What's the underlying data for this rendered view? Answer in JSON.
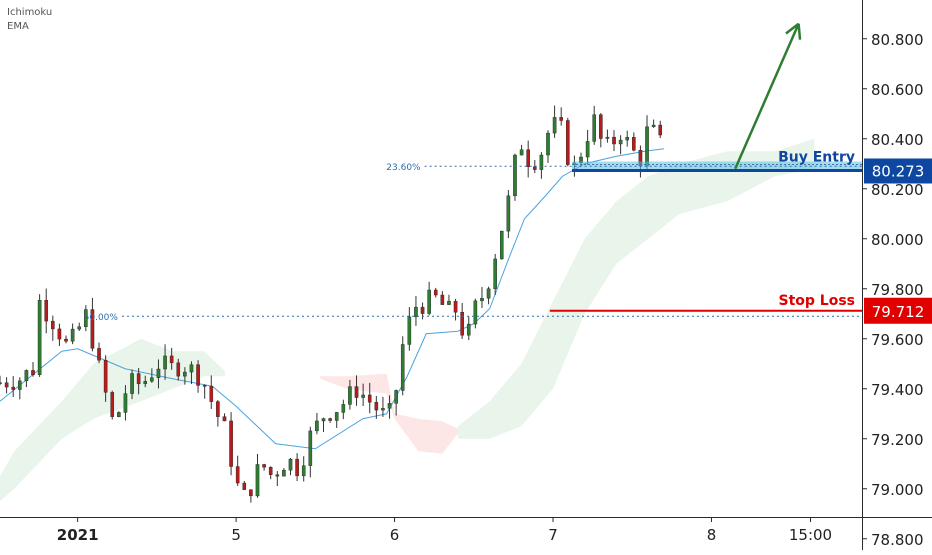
{
  "legend": {
    "ichimoku_label": "Ichimoku",
    "ema_label": "EMA"
  },
  "chart_data": {
    "type": "candlestick",
    "symbol_pair_indicators": [
      "Ichimoku",
      "EMA"
    ],
    "y_axis": {
      "ticks": [
        "80.800",
        "80.600",
        "80.400",
        "80.200",
        "80.000",
        "79.800",
        "79.600",
        "79.400",
        "79.200",
        "79.000",
        "78.800"
      ],
      "tick_values": [
        80.8,
        80.6,
        80.4,
        80.2,
        80.0,
        79.8,
        79.6,
        79.4,
        79.2,
        79.0,
        78.8
      ],
      "range": [
        78.755,
        80.955
      ]
    },
    "x_axis": {
      "ticks": [
        "2021",
        "5",
        "6",
        "7",
        "8",
        "15:00"
      ],
      "tick_positions_days": [
        0,
        1,
        2,
        3,
        4,
        4.625
      ],
      "range_days": [
        -0.49,
        4.95
      ]
    },
    "levels": {
      "buy_entry": {
        "label": "Buy Entry",
        "value": 80.273,
        "value_label": "80.273",
        "color": "#0d47a1",
        "zone_color": "#5bc0de"
      },
      "stop_loss": {
        "label": "Stop Loss",
        "value": 79.712,
        "value_label": "79.712",
        "color": "#e00000"
      }
    },
    "fibonacci": [
      {
        "label": "23.60%",
        "value": 80.29,
        "start_day": 1.95
      },
      {
        "label": "50.00%",
        "value": 79.69,
        "start_day": 0.04
      }
    ],
    "arrow": {
      "from": [
        4.15,
        80.28
      ],
      "to": [
        4.55,
        80.86
      ],
      "color": "#2e7d32"
    },
    "candle_path": [
      [
        -0.49,
        79.42
      ],
      [
        -0.32,
        79.44
      ],
      [
        -0.24,
        79.48
      ],
      [
        -0.2,
        79.75
      ],
      [
        -0.1,
        79.66
      ],
      [
        -0.02,
        79.56
      ],
      [
        0.1,
        79.7
      ],
      [
        0.18,
        79.47
      ],
      [
        0.27,
        79.25
      ],
      [
        0.36,
        79.42
      ],
      [
        0.45,
        79.42
      ],
      [
        0.55,
        79.5
      ],
      [
        0.63,
        79.48
      ],
      [
        0.7,
        79.5
      ],
      [
        0.82,
        79.45
      ],
      [
        0.92,
        79.3
      ],
      [
        0.98,
        79.22
      ],
      [
        1.04,
        79.02
      ],
      [
        1.1,
        78.96
      ],
      [
        1.2,
        79.1
      ],
      [
        1.27,
        79.05
      ],
      [
        1.36,
        79.12
      ],
      [
        1.44,
        79.08
      ],
      [
        1.5,
        79.2
      ],
      [
        1.6,
        79.3
      ],
      [
        1.7,
        79.33
      ],
      [
        1.8,
        79.4
      ],
      [
        1.87,
        79.36
      ],
      [
        1.96,
        79.3
      ],
      [
        2.0,
        79.28
      ],
      [
        2.04,
        79.35
      ],
      [
        2.1,
        79.6
      ],
      [
        2.17,
        79.73
      ],
      [
        2.3,
        79.76
      ],
      [
        2.4,
        79.7
      ],
      [
        2.45,
        79.73
      ],
      [
        2.47,
        79.63
      ],
      [
        2.52,
        79.62
      ],
      [
        2.55,
        79.72
      ],
      [
        2.62,
        79.8
      ],
      [
        2.7,
        80.0
      ],
      [
        2.76,
        80.15
      ],
      [
        2.83,
        80.4
      ],
      [
        2.9,
        80.3
      ],
      [
        2.97,
        80.35
      ],
      [
        3.03,
        80.46
      ],
      [
        3.1,
        80.43
      ],
      [
        3.14,
        80.32
      ],
      [
        3.18,
        80.28
      ],
      [
        3.26,
        80.42
      ],
      [
        3.31,
        80.48
      ],
      [
        3.36,
        80.35
      ],
      [
        3.41,
        80.38
      ],
      [
        3.47,
        80.43
      ],
      [
        3.54,
        80.35
      ],
      [
        3.6,
        80.32
      ],
      [
        3.65,
        80.47
      ],
      [
        3.7,
        80.38
      ]
    ],
    "ema_path": [
      [
        -0.49,
        79.35
      ],
      [
        -0.1,
        79.55
      ],
      [
        0.0,
        79.56
      ],
      [
        0.3,
        79.48
      ],
      [
        0.6,
        79.44
      ],
      [
        0.85,
        79.41
      ],
      [
        1.0,
        79.33
      ],
      [
        1.25,
        79.18
      ],
      [
        1.5,
        79.16
      ],
      [
        1.8,
        79.28
      ],
      [
        1.95,
        79.3
      ],
      [
        2.08,
        79.45
      ],
      [
        2.2,
        79.62
      ],
      [
        2.4,
        79.63
      ],
      [
        2.5,
        79.66
      ],
      [
        2.6,
        79.72
      ],
      [
        2.72,
        79.92
      ],
      [
        2.82,
        80.08
      ],
      [
        2.95,
        80.17
      ],
      [
        3.06,
        80.25
      ],
      [
        3.2,
        80.3
      ],
      [
        3.4,
        80.33
      ],
      [
        3.58,
        80.35
      ],
      [
        3.7,
        80.36
      ]
    ],
    "cloud_green": [
      [
        -0.49,
        79.05,
        78.95
      ],
      [
        -0.4,
        79.15,
        79.0
      ],
      [
        -0.25,
        79.25,
        79.1
      ],
      [
        -0.1,
        79.35,
        79.2
      ],
      [
        0.1,
        79.5,
        79.28
      ],
      [
        0.4,
        79.6,
        79.35
      ],
      [
        0.6,
        79.55,
        79.4
      ],
      [
        0.8,
        79.55,
        79.45
      ],
      [
        0.93,
        79.47,
        79.45
      ]
    ],
    "cloud_red": [
      [
        1.53,
        79.45,
        79.44
      ],
      [
        1.7,
        79.45,
        79.4
      ],
      [
        1.95,
        79.46,
        79.38
      ],
      [
        2.0,
        79.3,
        79.28
      ],
      [
        2.15,
        79.28,
        79.15
      ],
      [
        2.3,
        79.27,
        79.14
      ],
      [
        2.4,
        79.24,
        79.22
      ]
    ],
    "cloud_green_2": [
      [
        2.4,
        79.25,
        79.2
      ],
      [
        2.6,
        79.35,
        79.2
      ],
      [
        2.8,
        79.5,
        79.25
      ],
      [
        3.0,
        79.75,
        79.4
      ],
      [
        3.2,
        80.0,
        79.7
      ],
      [
        3.4,
        80.15,
        79.9
      ],
      [
        3.6,
        80.25,
        80.0
      ],
      [
        3.8,
        80.3,
        80.1
      ],
      [
        4.1,
        80.35,
        80.15
      ],
      [
        4.4,
        80.35,
        80.25
      ],
      [
        4.65,
        80.4,
        80.28
      ]
    ]
  }
}
